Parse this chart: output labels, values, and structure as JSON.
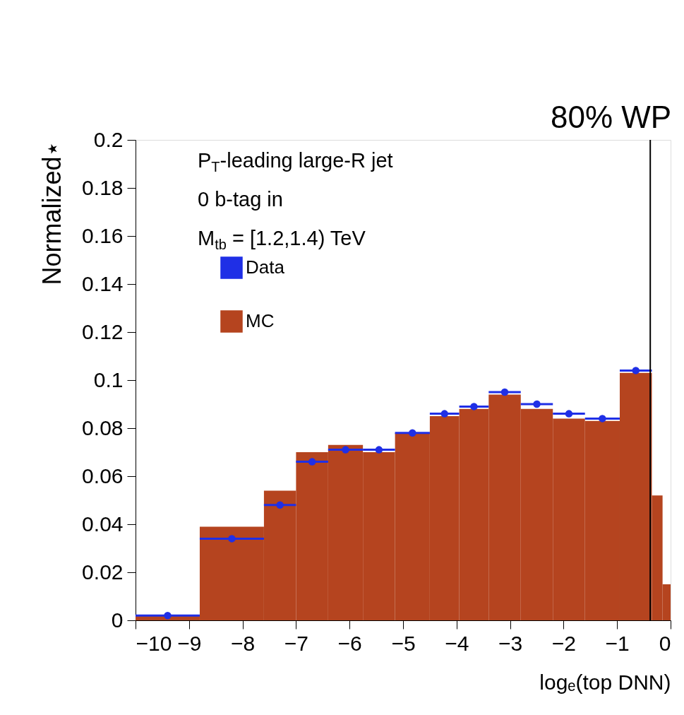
{
  "chart_data": {
    "type": "histogram",
    "xlabel": "logₑ(top DNN)",
    "ylabel": "Normalized⋆",
    "bins": [
      -10,
      -8.8,
      -7.6,
      -7.0,
      -6.4,
      -5.75,
      -5.15,
      -4.5,
      -3.95,
      -3.4,
      -2.8,
      -2.2,
      -1.6,
      -0.95,
      -0.35,
      -0.15,
      0
    ],
    "series": [
      {
        "name": "Data",
        "type": "scatter",
        "color": "#1f2fe6",
        "marker": "circle",
        "x": [
          -9.4,
          -8.2,
          -7.3,
          -6.7,
          -6.075,
          -5.45,
          -4.825,
          -4.225,
          -3.675,
          -3.1,
          -2.5,
          -1.9,
          -1.275,
          -0.65
        ],
        "values": [
          0.002,
          0.034,
          0.048,
          0.066,
          0.071,
          0.071,
          0.078,
          0.086,
          0.089,
          0.095,
          0.09,
          0.086,
          0.084,
          0.104
        ],
        "xerrors": [
          0.6,
          0.6,
          0.3,
          0.3,
          0.325,
          0.3,
          0.325,
          0.275,
          0.275,
          0.3,
          0.3,
          0.3,
          0.325,
          0.3
        ]
      },
      {
        "name": "MC",
        "color": "#b5441f",
        "values": [
          0.002,
          0.039,
          0.054,
          0.07,
          0.073,
          0.07,
          0.078,
          0.085,
          0.088,
          0.094,
          0.088,
          0.084,
          0.083,
          0.103,
          0.052,
          0.015
        ]
      }
    ],
    "annotations": [
      "P$_{T}$-leading large-R jet",
      "0 b-tag in",
      "M$_{tb}$ = [1.2,1.4) TeV"
    ],
    "ref_lines": [
      {
        "axis": "x",
        "value": -0.38,
        "label": "80% WP",
        "color": "#000000"
      }
    ],
    "xlim": [
      -10,
      0
    ],
    "xticks": [
      -10,
      -9,
      -8,
      -7,
      -6,
      -5,
      -4,
      -3,
      -2,
      -1,
      0
    ],
    "ylim": [
      0,
      0.2
    ],
    "yticks": [
      0,
      0.02,
      0.04,
      0.06,
      0.08,
      0.1,
      0.12,
      0.14,
      0.16,
      0.18,
      0.2
    ],
    "legend": "top left",
    "grid": false
  }
}
